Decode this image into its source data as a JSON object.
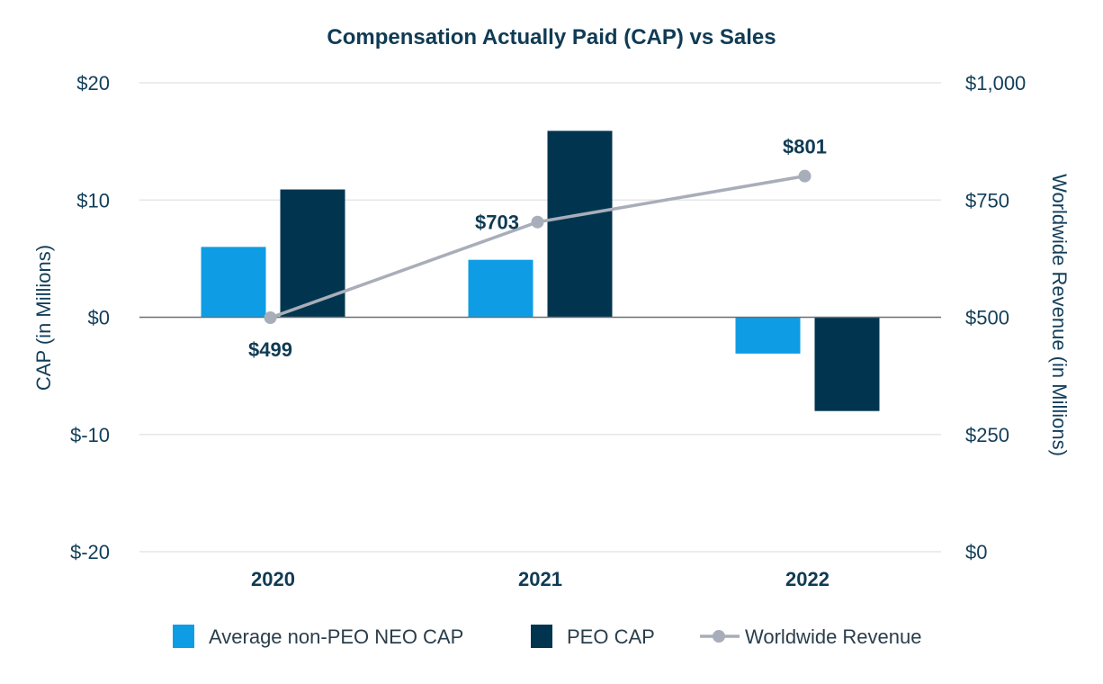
{
  "chart_data": {
    "type": "bar",
    "title": "Compensation Actually Paid (CAP) vs Sales",
    "categories": [
      "2020",
      "2021",
      "2022"
    ],
    "ylabel": "CAP (in Millions)",
    "y2label": "Worldwide Revenue (in Millions)",
    "ylim": [
      -20,
      20
    ],
    "y2lim": [
      0,
      1000
    ],
    "yticks": [
      {
        "value": 20,
        "label": "$20"
      },
      {
        "value": 10,
        "label": "$10"
      },
      {
        "value": 0,
        "label": "$0"
      },
      {
        "value": -10,
        "label": "$-10"
      },
      {
        "value": -20,
        "label": "$-20"
      }
    ],
    "y2ticks": [
      {
        "value": 1000,
        "label": "$1,000"
      },
      {
        "value": 750,
        "label": "$750"
      },
      {
        "value": 500,
        "label": "$500"
      },
      {
        "value": 250,
        "label": "$250"
      },
      {
        "value": 0,
        "label": "$0"
      }
    ],
    "grid": true,
    "legend_position": "bottom",
    "series": [
      {
        "name": "Average non-PEO NEO CAP",
        "type": "bar",
        "axis": "left",
        "color": "#0e9de5",
        "values": [
          6.0,
          4.9,
          -3.1
        ]
      },
      {
        "name": "PEO CAP",
        "type": "bar",
        "axis": "left",
        "color": "#01354f",
        "values": [
          10.9,
          15.9,
          -8.0
        ]
      },
      {
        "name": "Worldwide Revenue",
        "type": "line",
        "axis": "right",
        "color": "#a8aeb9",
        "values": [
          499,
          703,
          801
        ],
        "labels": [
          "$499",
          "$703",
          "$801"
        ]
      }
    ]
  }
}
